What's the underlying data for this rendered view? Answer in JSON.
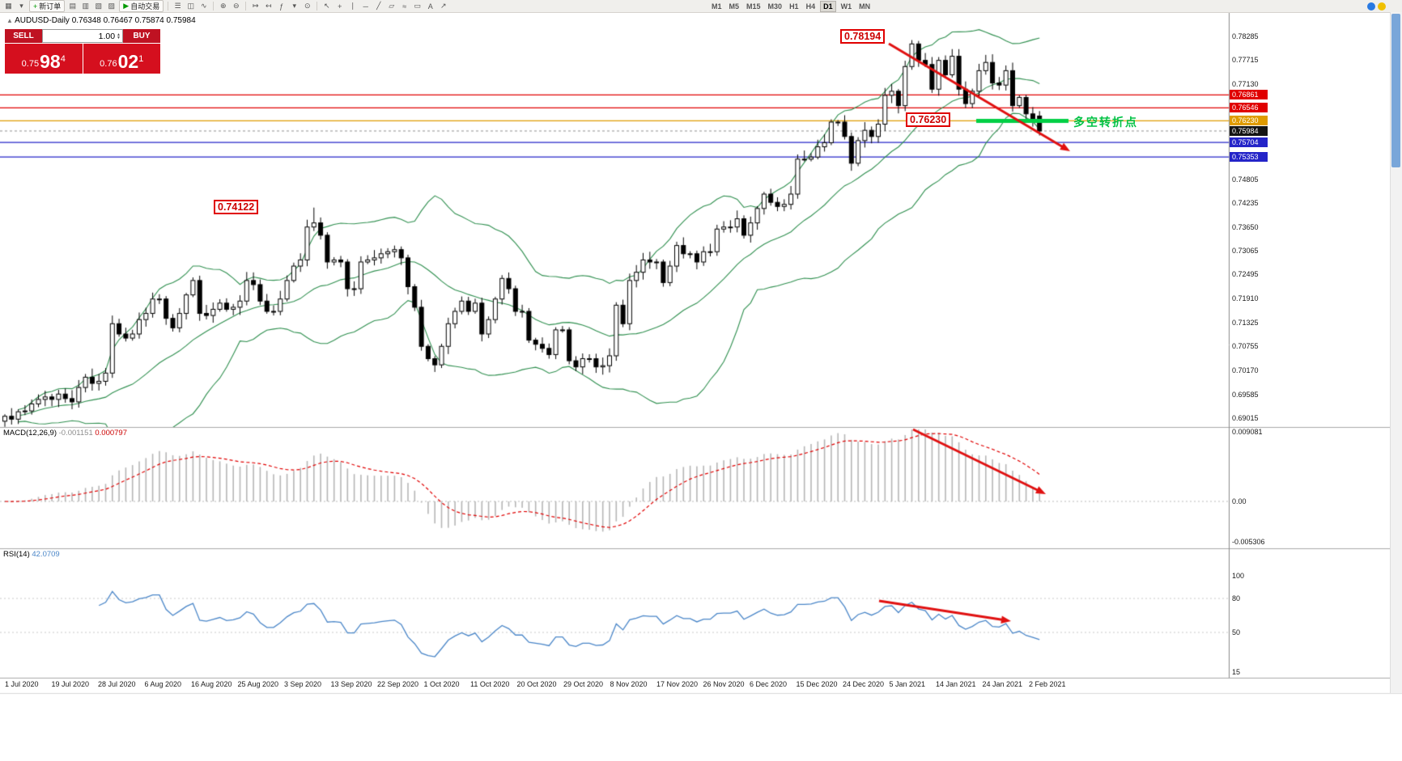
{
  "toolbar": {
    "left_items": [
      {
        "name": "new-chart-icon",
        "glyph": "▦"
      },
      {
        "name": "profiles-dropdown-icon",
        "glyph": "▾"
      },
      {
        "name": "new-order-button",
        "type": "btn",
        "glyph": "+",
        "glyph_color": "#009900",
        "label": "新订单"
      },
      {
        "name": "market-watch-icon",
        "glyph": "▤"
      },
      {
        "name": "data-window-icon",
        "glyph": "▥"
      },
      {
        "name": "navigator-icon",
        "glyph": "▧"
      },
      {
        "name": "terminal-icon",
        "glyph": "▨"
      },
      {
        "name": "autotrade-button",
        "type": "btn",
        "glyph": "▶",
        "glyph_color": "#009900",
        "label": "自动交易"
      },
      {
        "type": "sep"
      },
      {
        "name": "bar-chart-icon",
        "glyph": "☰"
      },
      {
        "name": "candlestick-chart-icon",
        "glyph": "◫"
      },
      {
        "name": "line-chart-icon",
        "glyph": "∿"
      },
      {
        "type": "sep"
      },
      {
        "name": "zoom-in-icon",
        "glyph": "⊕"
      },
      {
        "name": "zoom-out-icon",
        "glyph": "⊖"
      },
      {
        "type": "sep"
      },
      {
        "name": "auto-scroll-icon",
        "glyph": "↦"
      },
      {
        "name": "chart-shift-icon",
        "glyph": "↤"
      },
      {
        "name": "indicators-icon",
        "glyph": "ƒ"
      },
      {
        "name": "indicators-dropdown-icon",
        "glyph": "▾"
      },
      {
        "name": "periods-icon",
        "glyph": "⊙"
      },
      {
        "type": "sep"
      },
      {
        "name": "cursor-icon",
        "glyph": "↖"
      },
      {
        "name": "crosshair-icon",
        "glyph": "+"
      },
      {
        "name": "vertical-line-icon",
        "glyph": "∣"
      },
      {
        "name": "horizontal-line-icon",
        "glyph": "─"
      },
      {
        "name": "trendline-icon",
        "glyph": "╱"
      },
      {
        "name": "channel-icon",
        "glyph": "▱"
      },
      {
        "name": "fibonacci-icon",
        "glyph": "≈"
      },
      {
        "name": "shapes-icon",
        "glyph": "▭"
      },
      {
        "name": "text-icon",
        "glyph": "A"
      },
      {
        "name": "arrows-icon",
        "glyph": "↗"
      }
    ],
    "timeframes": [
      "M1",
      "M5",
      "M15",
      "M30",
      "H1",
      "H4",
      "D1",
      "W1",
      "MN"
    ],
    "active_timeframe": "D1",
    "right_items": [
      {
        "name": "help-icon",
        "color": "#2a7ae2"
      },
      {
        "name": "community-icon",
        "color": "#f0c000"
      }
    ]
  },
  "chart": {
    "title": "AUDUSD-Daily",
    "ohlc_text": "0.76348 0.76467 0.75874 0.75984"
  },
  "trade_panel": {
    "sell_label": "SELL",
    "buy_label": "BUY",
    "lot": "1.00",
    "sell_price_prefix": "0.75",
    "sell_price_big": "98",
    "sell_price_sup": "4",
    "buy_price_prefix": "0.76",
    "buy_price_big": "02",
    "buy_price_sup": "1"
  },
  "annotations": {
    "peak_label": "0.78194",
    "pivot_label": "0.76230",
    "aug_peak_label": "0.74122",
    "pivot_text": "多空转折点"
  },
  "price_axis": {
    "plain": [
      "0.78285",
      "0.77715",
      "0.77130",
      "0.74805",
      "0.74235",
      "0.73650",
      "0.73065",
      "0.72495",
      "0.71910",
      "0.71325",
      "0.70755",
      "0.70170",
      "0.69585",
      "0.69015"
    ],
    "boxed": [
      {
        "label": "0.76861",
        "color": "red"
      },
      {
        "label": "0.76546",
        "color": "red"
      },
      {
        "label": "0.76230",
        "color": "orange"
      },
      {
        "label": "0.75984",
        "color": "black"
      },
      {
        "label": "0.75704",
        "color": "blue"
      },
      {
        "label": "0.75353",
        "color": "blue"
      }
    ]
  },
  "macd_panel": {
    "label": "MACD(12,26,9)",
    "value1": "-0.001151",
    "value2": "0.000797",
    "axis": [
      "0.009081",
      "0.00",
      "-0.005306"
    ]
  },
  "rsi_panel": {
    "label": "RSI(14)",
    "value": "42.0709",
    "axis": [
      "100",
      "80",
      "50",
      "15"
    ]
  },
  "date_axis": [
    "1 Jul 2020",
    "19 Jul 2020",
    "28 Jul 2020",
    "6 Aug 2020",
    "16 Aug 2020",
    "25 Aug 2020",
    "3 Sep 2020",
    "13 Sep 2020",
    "22 Sep 2020",
    "1 Oct 2020",
    "11 Oct 2020",
    "20 Oct 2020",
    "29 Oct 2020",
    "8 Nov 2020",
    "17 Nov 2020",
    "26 Nov 2020",
    "6 Dec 2020",
    "15 Dec 2020",
    "24 Dec 2020",
    "5 Jan 2021",
    "14 Jan 2021",
    "24 Jan 2021",
    "2 Feb 2021"
  ],
  "colors": {
    "red": "#e00000",
    "orange": "#df9b00",
    "blue": "#2424c8",
    "black": "#141414",
    "band_green": "#2f8f4f",
    "rsi_blue": "#4a86c8",
    "macd_silver": "#b6b6b6",
    "signal_red": "#e00000",
    "pivot_green": "#00cf45",
    "arrow_red": "#e01010",
    "trade_red": "#d50f1e"
  },
  "chart_data": {
    "type": "candlestick",
    "symbol": "AUDUSD",
    "timeframe": "Daily",
    "title": "AUDUSD-Daily",
    "ylim": [
      0.6879,
      0.78854
    ],
    "x_labels": [
      "1 Jul 2020",
      "19 Jul 2020",
      "28 Jul 2020",
      "6 Aug 2020",
      "16 Aug 2020",
      "25 Aug 2020",
      "3 Sep 2020",
      "13 Sep 2020",
      "22 Sep 2020",
      "1 Oct 2020",
      "11 Oct 2020",
      "20 Oct 2020",
      "29 Oct 2020",
      "8 Nov 2020",
      "17 Nov 2020",
      "26 Nov 2020",
      "6 Dec 2020",
      "15 Dec 2020",
      "24 Dec 2020",
      "5 Jan 2021",
      "14 Jan 2021",
      "24 Jan 2021",
      "2 Feb 2021"
    ],
    "closes": [
      0.6905,
      0.6898,
      0.6916,
      0.6918,
      0.6935,
      0.6946,
      0.6952,
      0.6946,
      0.6959,
      0.6948,
      0.694,
      0.6975,
      0.7,
      0.6985,
      0.699,
      0.701,
      0.713,
      0.7105,
      0.7095,
      0.7105,
      0.714,
      0.7155,
      0.719,
      0.719,
      0.7143,
      0.712,
      0.7155,
      0.72,
      0.7235,
      0.7155,
      0.715,
      0.7165,
      0.718,
      0.7165,
      0.717,
      0.7185,
      0.7235,
      0.7225,
      0.7185,
      0.716,
      0.716,
      0.719,
      0.7235,
      0.727,
      0.7285,
      0.7365,
      0.7375,
      0.7345,
      0.728,
      0.7285,
      0.728,
      0.7215,
      0.7215,
      0.728,
      0.7285,
      0.729,
      0.73,
      0.7305,
      0.731,
      0.729,
      0.722,
      0.717,
      0.7075,
      0.7045,
      0.703,
      0.7075,
      0.713,
      0.716,
      0.7185,
      0.716,
      0.718,
      0.7105,
      0.714,
      0.719,
      0.724,
      0.7215,
      0.716,
      0.716,
      0.709,
      0.708,
      0.707,
      0.7055,
      0.7115,
      0.7115,
      0.704,
      0.7025,
      0.7045,
      0.7045,
      0.7025,
      0.7028,
      0.7052,
      0.7175,
      0.713,
      0.7235,
      0.7255,
      0.7285,
      0.728,
      0.728,
      0.723,
      0.727,
      0.732,
      0.73,
      0.73,
      0.728,
      0.7305,
      0.7305,
      0.736,
      0.7365,
      0.7365,
      0.7385,
      0.7345,
      0.7375,
      0.741,
      0.7445,
      0.7425,
      0.7415,
      0.742,
      0.7445,
      0.753,
      0.753,
      0.7535,
      0.756,
      0.757,
      0.762,
      0.762,
      0.7585,
      0.752,
      0.7575,
      0.76,
      0.7585,
      0.7615,
      0.7685,
      0.7695,
      0.766,
      0.7755,
      0.781,
      0.777,
      0.776,
      0.77,
      0.777,
      0.7735,
      0.778,
      0.77,
      0.7665,
      0.7695,
      0.7745,
      0.7765,
      0.7715,
      0.771,
      0.7745,
      0.766,
      0.768,
      0.764,
      0.762,
      0.7598
    ],
    "high_overrides": {
      "46": 0.74122,
      "135": 0.78194
    },
    "current_bar": {
      "open": 0.76348,
      "high": 0.76467,
      "low": 0.75874,
      "close": 0.75984
    },
    "horizontal_lines": [
      {
        "price": 0.76861,
        "color": "red"
      },
      {
        "price": 0.76546,
        "color": "red"
      },
      {
        "price": 0.7623,
        "color": "orange"
      },
      {
        "price": 0.75704,
        "color": "blue"
      },
      {
        "price": 0.75353,
        "color": "blue"
      }
    ],
    "bid_price": 0.75984,
    "indicators": {
      "bollinger": {
        "period": 20,
        "deviation": 2
      },
      "macd": {
        "fast": 12,
        "slow": 26,
        "signal": 9,
        "current_values": [
          -0.001151,
          0.000797
        ],
        "axis_max": 0.009081,
        "axis_min": -0.005306
      },
      "rsi": {
        "period": 14,
        "current_value": 42.0709,
        "levels": [
          100,
          80,
          50,
          15
        ]
      }
    },
    "annotations": [
      {
        "text": "0.78194",
        "at_index": 135
      },
      {
        "text": "0.74122",
        "at_index": 46
      },
      {
        "text": "0.76230",
        "price": 0.7623
      },
      {
        "text": "多空转折点",
        "price": 0.7623
      }
    ]
  }
}
